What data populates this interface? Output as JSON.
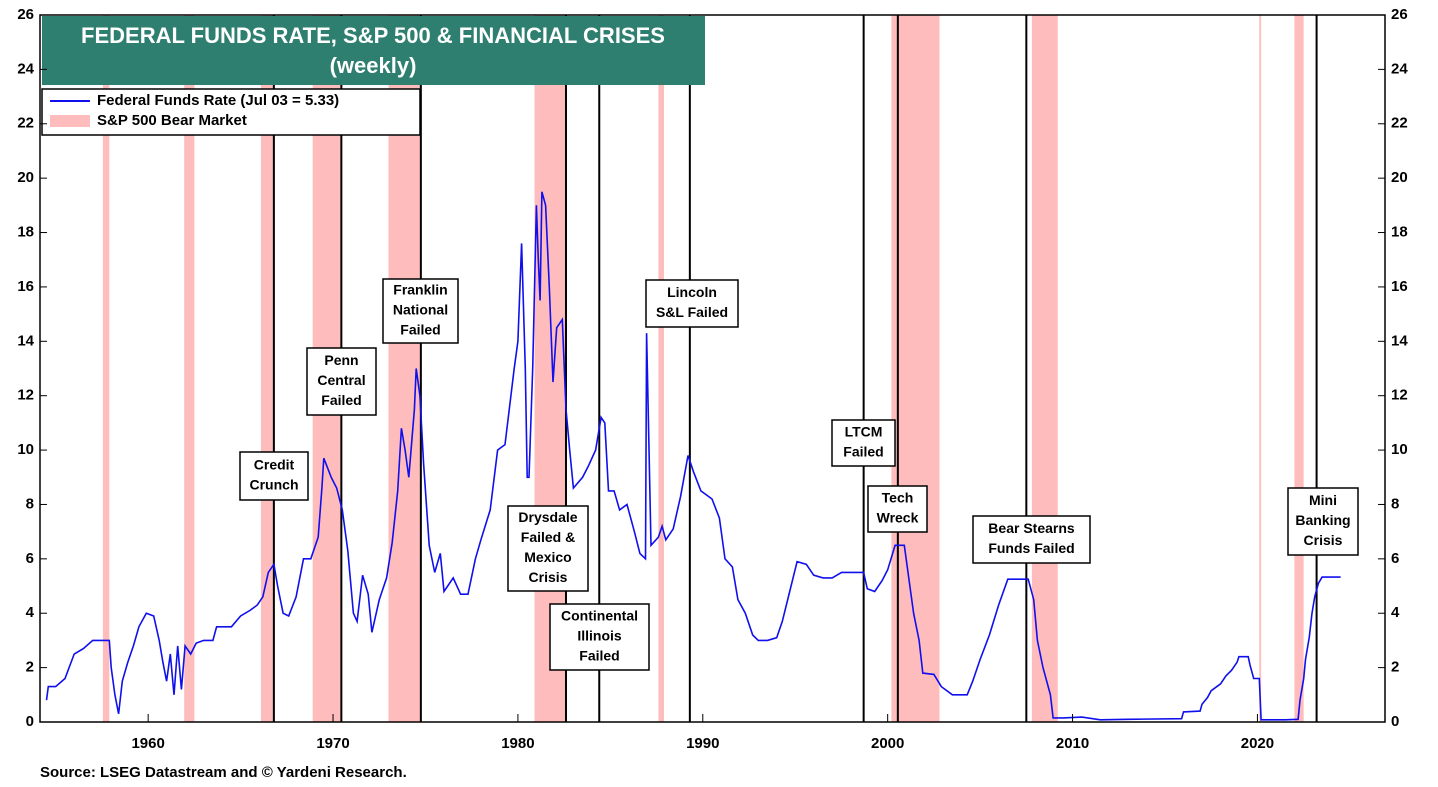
{
  "chart_data": {
    "type": "line",
    "title": "FEDERAL FUNDS RATE, S&P 500 & FINANCIAL CRISES",
    "subtitle": "(weekly)",
    "source": "Source: LSEG Datastream and © Yardeni Research.",
    "xlim": [
      1954.15,
      2026.9
    ],
    "xticks": [
      1960,
      1970,
      1980,
      1990,
      2000,
      2010,
      2020
    ],
    "ylim": [
      0,
      26
    ],
    "yticks": [
      0,
      2,
      4,
      6,
      8,
      10,
      12,
      14,
      16,
      18,
      20,
      22,
      24,
      26
    ],
    "legend": "top-left",
    "x": [
      1954.5,
      1954.6,
      1955.0,
      1955.5,
      1956.0,
      1956.5,
      1957.0,
      1957.5,
      1957.9,
      1958.0,
      1958.2,
      1958.4,
      1958.6,
      1958.9,
      1959.2,
      1959.5,
      1959.9,
      1960.3,
      1960.6,
      1960.8,
      1961.0,
      1961.2,
      1961.4,
      1961.6,
      1961.8,
      1962.0,
      1962.3,
      1962.6,
      1963.0,
      1963.5,
      1963.7,
      1964.5,
      1965.0,
      1965.5,
      1965.9,
      1966.2,
      1966.5,
      1966.8,
      1967.0,
      1967.3,
      1967.6,
      1968.0,
      1968.4,
      1968.8,
      1969.2,
      1969.4,
      1969.5,
      1969.9,
      1970.2,
      1970.5,
      1970.8,
      1971.1,
      1971.3,
      1971.6,
      1971.9,
      1972.1,
      1972.5,
      1972.9,
      1973.2,
      1973.5,
      1973.7,
      1973.9,
      1974.1,
      1974.4,
      1974.5,
      1974.7,
      1974.9,
      1975.2,
      1975.5,
      1975.8,
      1976.0,
      1976.5,
      1976.9,
      1977.3,
      1977.7,
      1978.0,
      1978.5,
      1978.9,
      1979.3,
      1979.8,
      1980.0,
      1980.2,
      1980.4,
      1980.5,
      1980.6,
      1980.8,
      1981.0,
      1981.1,
      1981.2,
      1981.3,
      1981.5,
      1981.7,
      1981.9,
      1982.1,
      1982.4,
      1982.6,
      1982.8,
      1983.0,
      1983.5,
      1983.8,
      1984.2,
      1984.5,
      1984.7,
      1984.9,
      1985.2,
      1985.5,
      1985.9,
      1986.3,
      1986.6,
      1986.9,
      1986.96,
      1987.2,
      1987.6,
      1987.8,
      1988.0,
      1988.4,
      1988.8,
      1989.2,
      1989.5,
      1989.9,
      1990.5,
      1990.9,
      1991.2,
      1991.6,
      1991.9,
      1992.3,
      1992.7,
      1993.0,
      1993.5,
      1994.0,
      1994.3,
      1994.7,
      1995.1,
      1995.6,
      1996.0,
      1996.5,
      1997.0,
      1997.5,
      1998.0,
      1998.7,
      1998.9,
      1999.3,
      1999.7,
      2000.0,
      2000.4,
      2000.9,
      2001.1,
      2001.4,
      2001.7,
      2001.9,
      2002.5,
      2002.9,
      2003.5,
      2004.3,
      2004.6,
      2005.0,
      2005.5,
      2006.0,
      2006.5,
      2007.6,
      2007.9,
      2008.1,
      2008.4,
      2008.8,
      2008.95,
      2009.5,
      2010.5,
      2011.5,
      2013.0,
      2015.9,
      2016.0,
      2016.9,
      2017.0,
      2017.3,
      2017.5,
      2018.0,
      2018.3,
      2018.6,
      2018.9,
      2019.0,
      2019.5,
      2019.6,
      2019.8,
      2020.1,
      2020.2,
      2021.5,
      2022.2,
      2022.3,
      2022.5,
      2022.6,
      2022.8,
      2022.95,
      2023.1,
      2023.3,
      2023.5,
      2024.5
    ],
    "series": [
      {
        "name": "Federal Funds Rate (Jul 03 = 5.33)",
        "color": "#1010ee",
        "values": [
          0.8,
          1.3,
          1.3,
          1.6,
          2.5,
          2.7,
          3.0,
          3.0,
          3.0,
          2.0,
          1.0,
          0.3,
          1.5,
          2.2,
          2.8,
          3.5,
          4.0,
          3.9,
          3.0,
          2.2,
          1.5,
          2.5,
          1.0,
          2.8,
          1.2,
          2.8,
          2.5,
          2.9,
          3.0,
          3.0,
          3.5,
          3.5,
          3.9,
          4.1,
          4.3,
          4.6,
          5.5,
          5.8,
          5.0,
          4.0,
          3.9,
          4.6,
          6.0,
          6.0,
          6.8,
          8.6,
          9.7,
          9.0,
          8.6,
          7.8,
          6.3,
          4.0,
          3.7,
          5.4,
          4.7,
          3.3,
          4.5,
          5.3,
          6.6,
          8.5,
          10.8,
          10.0,
          9.0,
          11.5,
          13.0,
          12.0,
          9.5,
          6.5,
          5.5,
          6.2,
          4.8,
          5.3,
          4.7,
          4.7,
          6.0,
          6.7,
          7.8,
          10.0,
          10.2,
          13.0,
          14.0,
          17.6,
          13.0,
          9.0,
          9.0,
          13.0,
          19.0,
          17.0,
          15.5,
          19.5,
          19.0,
          16.0,
          12.5,
          14.5,
          14.8,
          11.5,
          10.0,
          8.6,
          9.0,
          9.4,
          10.0,
          11.2,
          11.0,
          8.5,
          8.5,
          7.8,
          8.0,
          7.0,
          6.2,
          6.0,
          14.3,
          6.5,
          6.8,
          7.2,
          6.7,
          7.1,
          8.3,
          9.8,
          9.2,
          8.5,
          8.2,
          7.5,
          6.0,
          5.7,
          4.5,
          4.0,
          3.2,
          3.0,
          3.0,
          3.1,
          3.7,
          4.8,
          5.9,
          5.8,
          5.4,
          5.3,
          5.3,
          5.5,
          5.5,
          5.5,
          4.9,
          4.8,
          5.2,
          5.6,
          6.5,
          6.5,
          5.5,
          4.0,
          3.0,
          1.8,
          1.75,
          1.3,
          1.0,
          1.0,
          1.5,
          2.3,
          3.2,
          4.3,
          5.25,
          5.25,
          4.5,
          3.0,
          2.0,
          1.0,
          0.15,
          0.15,
          0.18,
          0.08,
          0.1,
          0.12,
          0.37,
          0.4,
          0.65,
          0.9,
          1.15,
          1.4,
          1.7,
          1.9,
          2.2,
          2.4,
          2.4,
          2.1,
          1.6,
          1.6,
          0.08,
          0.08,
          0.1,
          0.8,
          1.6,
          2.3,
          3.1,
          4.0,
          4.6,
          5.1,
          5.33,
          5.33
        ]
      }
    ],
    "bear_market": {
      "name": "S&P 500 Bear Market",
      "color": "#ffbcbc",
      "periods": [
        {
          "start": 1957.55,
          "end": 1957.9
        },
        {
          "start": 1961.95,
          "end": 1962.5
        },
        {
          "start": 1966.1,
          "end": 1966.8
        },
        {
          "start": 1968.9,
          "end": 1970.4
        },
        {
          "start": 1973.0,
          "end": 1974.7
        },
        {
          "start": 1980.9,
          "end": 1982.6
        },
        {
          "start": 1987.6,
          "end": 1987.9
        },
        {
          "start": 2000.2,
          "end": 2002.8
        },
        {
          "start": 2007.8,
          "end": 2009.2
        },
        {
          "start": 2020.1,
          "end": 2020.2
        },
        {
          "start": 2022.0,
          "end": 2022.5
        }
      ]
    },
    "events": [
      {
        "x": 1966.8,
        "label": [
          "Credit",
          "Crunch"
        ]
      },
      {
        "x": 1970.45,
        "label": [
          "Penn",
          "Central",
          "Failed"
        ]
      },
      {
        "x": 1974.75,
        "label": [
          "Franklin",
          "National",
          "Failed"
        ]
      },
      {
        "x": 1982.6,
        "label": [
          "Drysdale",
          "Failed &",
          "Mexico",
          "Crisis"
        ]
      },
      {
        "x": 1984.4,
        "label": [
          "Continental",
          "Illinois",
          "Failed"
        ]
      },
      {
        "x": 1989.3,
        "label": [
          "Lincoln",
          "S&L Failed"
        ]
      },
      {
        "x": 1998.7,
        "label": [
          "LTCM",
          "Failed"
        ]
      },
      {
        "x": 2000.55,
        "label": [
          "Tech",
          "Wreck"
        ]
      },
      {
        "x": 2007.5,
        "label": [
          "Bear Stearns",
          "Funds Failed"
        ]
      },
      {
        "x": 2023.2,
        "label": [
          "Mini",
          "Banking",
          "Crisis"
        ]
      }
    ]
  }
}
